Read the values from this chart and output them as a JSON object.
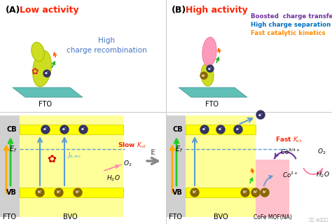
{
  "bg_color": "#ffffff",
  "panel_A_label": "(A)",
  "panel_A_activity": "Low activity",
  "panel_A_activity_color": "#ff2200",
  "panel_A_recomb_text": "High\ncharge recombination",
  "panel_A_recomb_color": "#4472c4",
  "panel_B_label": "(B)",
  "panel_B_activity": "High activity",
  "panel_B_activity_color": "#ff2200",
  "panel_B_ann1": "Boosted  charge transfer",
  "panel_B_ann1_color": "#7030a0",
  "panel_B_ann2": "High charge separation",
  "panel_B_ann2_color": "#0070c0",
  "panel_B_ann3": "Fast catalytic kinetics",
  "panel_B_ann3_color": "#ff8c00",
  "fto_color": "#d0d0d0",
  "bvo_color": "#ffff99",
  "mof_color": "#ffb6c1",
  "cb_bar_color": "#ffff00",
  "cb_bar_edge": "#cccc00",
  "arrow_blue": "#5b9bd5",
  "arrow_purple": "#7030a0",
  "arrow_pink": "#ff88aa",
  "slow_kct_color": "#ff2200",
  "fast_kct_color": "#ff2200",
  "crystal_bvo_color": "#ccdd22",
  "crystal_mof_color": "#ff99bb",
  "platform_color": "#60c0b8",
  "divider_color": "#cccccc",
  "watermark": "知乎 @徐佳室",
  "label_fto": "FTO",
  "label_bvo": "BVO",
  "label_mof": "CoFe MOF(NA)",
  "label_cb": "CB",
  "label_vb": "VB",
  "label_ef": "$E_f$",
  "label_jrec": "$J_{b,rec}$",
  "label_slow": "Slow $K_{ct}$",
  "label_fast": "Fast $K_{ct}$",
  "label_o2": "$O_2$",
  "label_h2o": "$H_2O$",
  "label_co34": "$Co^{3/4+}$",
  "label_co2": "$Co^{2+}$",
  "label_e": "E"
}
